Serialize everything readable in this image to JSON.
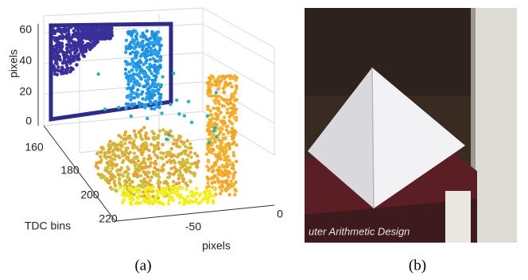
{
  "figure": {
    "panels": [
      {
        "label": "(a)",
        "axes": {
          "z": {
            "label": "pixels",
            "ticks": [
              0,
              20,
              40,
              60
            ]
          },
          "y": {
            "label": "TDC bins",
            "ticks": [
              160,
              180,
              200,
              220
            ]
          },
          "x": {
            "label": "pixels",
            "ticks": [
              -50,
              0
            ]
          }
        }
      },
      {
        "label": "(b)",
        "photo_text": "uter Arithmetic Design"
      }
    ]
  }
}
